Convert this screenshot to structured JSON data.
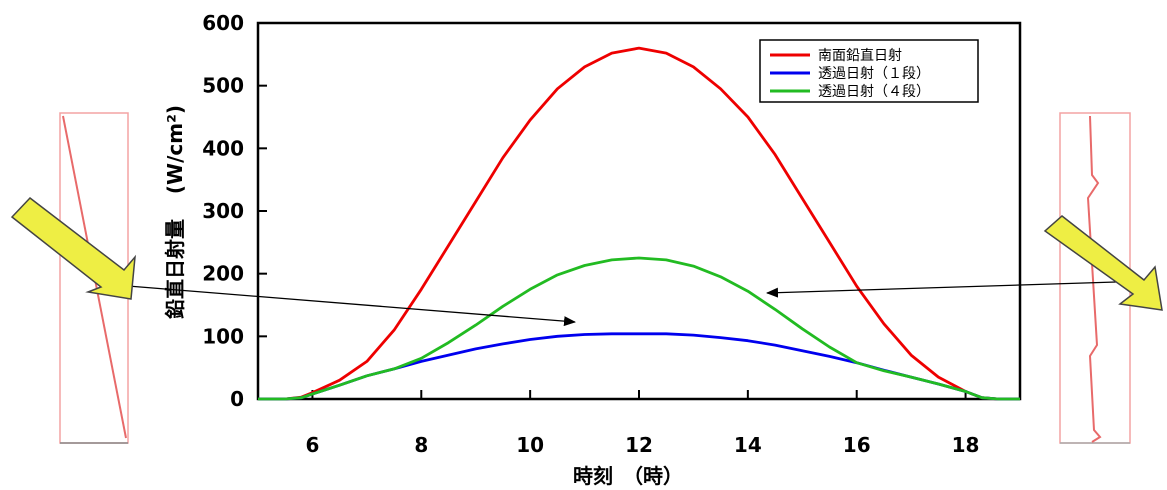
{
  "chart_data": {
    "type": "line",
    "title": "",
    "xlabel": "時刻　（時）",
    "ylabel": "鉛直日射量　(W/cm²)",
    "ylabel_main": "鉛直日射量",
    "ylabel_unit": "(W/cm²)",
    "xlim": [
      5,
      19
    ],
    "ylim": [
      0,
      600
    ],
    "xticks": [
      6,
      8,
      10,
      12,
      14,
      16,
      18
    ],
    "yticks": [
      0,
      100,
      200,
      300,
      400,
      500,
      600
    ],
    "legend_position": "top-right",
    "grid": false,
    "series": [
      {
        "name": "南面鉛直日射",
        "color": "#ee0000",
        "x": [
          5,
          5.5,
          5.8,
          6,
          6.5,
          7,
          7.5,
          8,
          8.5,
          9,
          9.5,
          10,
          10.5,
          11,
          11.5,
          12,
          12.5,
          13,
          13.5,
          14,
          14.5,
          15,
          15.5,
          16,
          16.5,
          17,
          17.5,
          18,
          18.3,
          18.6,
          19
        ],
        "y": [
          0,
          0,
          3,
          10,
          30,
          60,
          110,
          175,
          245,
          315,
          385,
          445,
          495,
          530,
          552,
          560,
          552,
          530,
          495,
          450,
          390,
          320,
          250,
          180,
          120,
          70,
          35,
          12,
          2,
          0,
          0
        ]
      },
      {
        "name": "透過日射（１段）",
        "color": "#0000ee",
        "x": [
          5,
          5.5,
          5.8,
          6,
          6.5,
          7,
          7.5,
          8,
          8.5,
          9,
          9.5,
          10,
          10.5,
          11,
          11.5,
          12,
          12.5,
          13,
          13.5,
          14,
          14.5,
          15,
          15.5,
          16,
          16.5,
          17,
          17.5,
          18,
          18.3,
          18.6,
          19
        ],
        "y": [
          0,
          0,
          2,
          8,
          22,
          37,
          48,
          60,
          70,
          80,
          88,
          95,
          100,
          103,
          104,
          104,
          104,
          102,
          98,
          93,
          86,
          77,
          68,
          58,
          46,
          35,
          24,
          12,
          2,
          0,
          0
        ]
      },
      {
        "name": "透過日射（４段）",
        "color": "#22bb22",
        "x": [
          5,
          5.5,
          5.8,
          6,
          6.5,
          7,
          7.5,
          8,
          8.5,
          9,
          9.5,
          10,
          10.5,
          11,
          11.5,
          12,
          12.5,
          13,
          13.5,
          14,
          14.5,
          15,
          15.5,
          16,
          16.5,
          17,
          17.5,
          18,
          18.3,
          18.6,
          19
        ],
        "y": [
          0,
          0,
          2,
          8,
          22,
          37,
          48,
          65,
          90,
          118,
          148,
          175,
          198,
          213,
          222,
          225,
          222,
          212,
          195,
          172,
          143,
          112,
          83,
          58,
          45,
          35,
          24,
          12,
          2,
          0,
          0
        ]
      }
    ]
  }
}
